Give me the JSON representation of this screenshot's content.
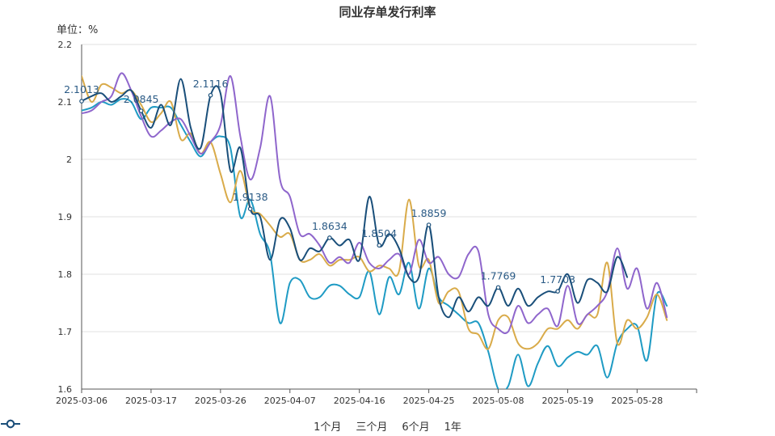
{
  "chart_data": {
    "type": "line",
    "title": "同业存单发行利率",
    "unit_label": "单位：%",
    "ylim": [
      1.6,
      2.2
    ],
    "yticks": [
      "1.6",
      "1.7",
      "1.8",
      "1.9",
      "2",
      "2.1",
      "2.2"
    ],
    "x_range": [
      0,
      62
    ],
    "xticks": [
      {
        "label": "2025-03-06",
        "index": 0
      },
      {
        "label": "2025-03-17",
        "index": 7
      },
      {
        "label": "2025-03-26",
        "index": 14
      },
      {
        "label": "2025-04-07",
        "index": 21
      },
      {
        "label": "2025-04-16",
        "index": 28
      },
      {
        "label": "2025-04-25",
        "index": 35
      },
      {
        "label": "2025-05-08",
        "index": 42
      },
      {
        "label": "2025-05-19",
        "index": 49
      },
      {
        "label": "2025-05-28",
        "index": 56
      }
    ],
    "series": [
      {
        "name": "1个月",
        "color": "#1f9bc4",
        "values": [
          2.085,
          2.09,
          2.1,
          2.095,
          2.105,
          2.1,
          2.07,
          2.09,
          2.09,
          2.09,
          2.06,
          2.03,
          2.005,
          2.03,
          2.04,
          2.02,
          1.9,
          1.93,
          1.87,
          1.835,
          1.715,
          1.785,
          1.79,
          1.76,
          1.76,
          1.78,
          1.78,
          1.765,
          1.76,
          1.805,
          1.73,
          1.795,
          1.765,
          1.82,
          1.74,
          1.81,
          1.76,
          1.745,
          1.73,
          1.715,
          1.715,
          1.665,
          1.6,
          1.605,
          1.66,
          1.605,
          1.645,
          1.675,
          1.64,
          1.655,
          1.665,
          1.66,
          1.675,
          1.62,
          1.68,
          1.705,
          1.71,
          1.65,
          1.765,
          1.745
        ]
      },
      {
        "name": "三个月",
        "color": "#d9ab4a",
        "values": [
          2.145,
          2.1,
          2.13,
          2.125,
          2.115,
          2.12,
          2.095,
          2.065,
          2.08,
          2.1,
          2.035,
          2.045,
          2.01,
          2.03,
          1.975,
          1.925,
          1.98,
          1.915,
          1.905,
          1.885,
          1.865,
          1.87,
          1.825,
          1.825,
          1.835,
          1.815,
          1.825,
          1.825,
          1.83,
          1.805,
          1.815,
          1.81,
          1.805,
          1.93,
          1.815,
          1.825,
          1.75,
          1.77,
          1.77,
          1.705,
          1.695,
          1.67,
          1.72,
          1.725,
          1.68,
          1.67,
          1.68,
          1.705,
          1.705,
          1.72,
          1.705,
          1.73,
          1.73,
          1.82,
          1.68,
          1.72,
          1.705,
          1.725,
          1.765,
          1.72
        ]
      },
      {
        "name": "6个月",
        "color": "#8f66cc",
        "values": [
          2.08,
          2.085,
          2.1,
          2.11,
          2.15,
          2.12,
          2.075,
          2.04,
          2.05,
          2.065,
          2.07,
          2.04,
          2.01,
          2.03,
          2.06,
          2.145,
          2.04,
          1.965,
          2.02,
          2.11,
          1.965,
          1.935,
          1.87,
          1.87,
          1.85,
          1.82,
          1.83,
          1.82,
          1.855,
          1.82,
          1.81,
          1.825,
          1.835,
          1.8,
          1.86,
          1.82,
          1.83,
          1.8,
          1.795,
          1.835,
          1.84,
          1.73,
          1.705,
          1.7,
          1.745,
          1.715,
          1.73,
          1.74,
          1.71,
          1.78,
          1.715,
          1.73,
          1.745,
          1.77,
          1.845,
          1.775,
          1.81,
          1.74,
          1.785,
          1.725
        ]
      },
      {
        "name": "1年",
        "color": "#1a4f7a",
        "values": [
          2.1013,
          2.11,
          2.115,
          2.1,
          2.11,
          2.12,
          2.0845,
          2.055,
          2.095,
          2.06,
          2.14,
          2.055,
          2.02,
          2.1116,
          2.115,
          1.98,
          2.02,
          1.9138,
          1.9,
          1.825,
          1.895,
          1.88,
          1.825,
          1.845,
          1.84,
          1.8634,
          1.85,
          1.86,
          1.825,
          1.935,
          1.8504,
          1.87,
          1.845,
          1.795,
          1.795,
          1.8859,
          1.76,
          1.725,
          1.76,
          1.735,
          1.76,
          1.745,
          1.7769,
          1.745,
          1.775,
          1.745,
          1.76,
          1.77,
          1.7703,
          1.8,
          1.75,
          1.79,
          1.785,
          1.77,
          1.83,
          1.795
        ]
      }
    ],
    "annotations": [
      {
        "text": "2.1013",
        "series": 3,
        "index": 0
      },
      {
        "text": "2.0845",
        "series": 3,
        "index": 6
      },
      {
        "text": "2.1116",
        "series": 3,
        "index": 13
      },
      {
        "text": "1.9138",
        "series": 3,
        "index": 17
      },
      {
        "text": "1.8634",
        "series": 3,
        "index": 25
      },
      {
        "text": "1.8504",
        "series": 3,
        "index": 30
      },
      {
        "text": "1.8859",
        "series": 3,
        "index": 35
      },
      {
        "text": "1.7769",
        "series": 3,
        "index": 42
      },
      {
        "text": "1.7703",
        "series": 3,
        "index": 48
      }
    ]
  }
}
